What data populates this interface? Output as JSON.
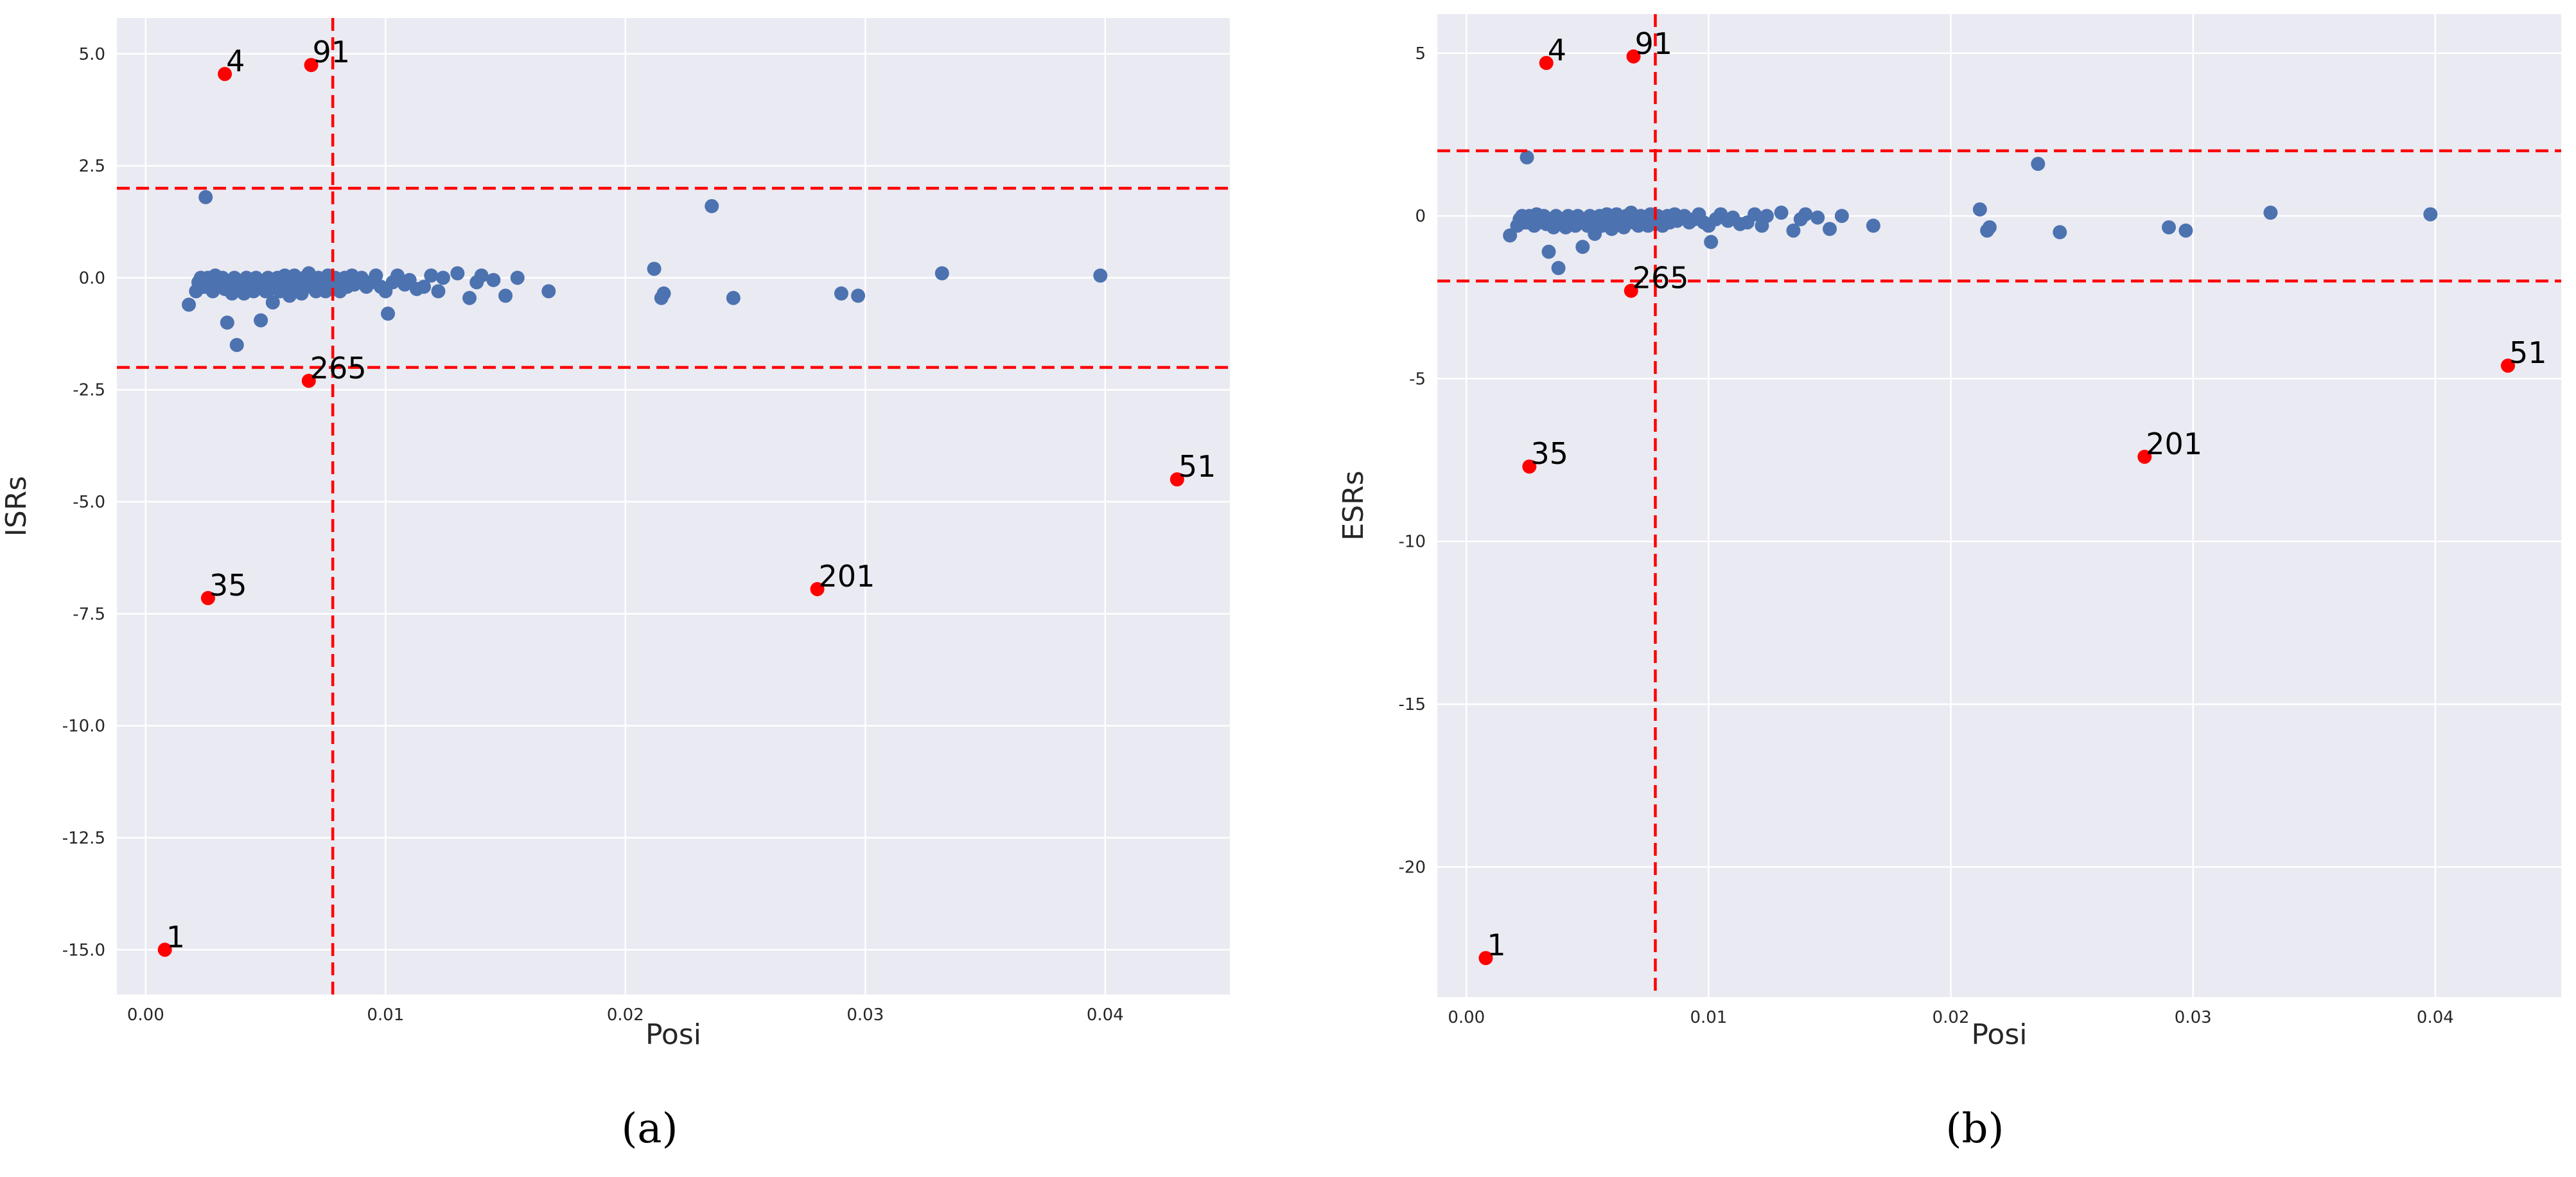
{
  "chart_data": [
    {
      "type": "scatter",
      "panel_label": "(a)",
      "xlabel": "Posi",
      "ylabel": "ISRs",
      "xlim": [
        -0.0012,
        0.0452
      ],
      "ylim": [
        -16.0,
        5.8
      ],
      "xticks": [
        0.0,
        0.01,
        0.02,
        0.03,
        0.04
      ],
      "xtick_labels": [
        "0.00",
        "0.01",
        "0.02",
        "0.03",
        "0.04"
      ],
      "yticks": [
        -15.0,
        -12.5,
        -10.0,
        -7.5,
        -5.0,
        -2.5,
        0.0,
        2.5,
        5.0
      ],
      "ytick_labels": [
        "-15.0",
        "-12.5",
        "-10.0",
        "-7.5",
        "-5.0",
        "-2.5",
        "0.0",
        "2.5",
        "5.0"
      ],
      "grid": true,
      "threshold_lines": {
        "vertical": 0.0078,
        "horizontal": [
          2.0,
          -2.0
        ]
      },
      "series": [
        {
          "role": "normal",
          "points": [
            [
              0.0018,
              -0.6
            ],
            [
              0.0021,
              -0.3
            ],
            [
              0.0022,
              -0.1
            ],
            [
              0.0023,
              0.0
            ],
            [
              0.0024,
              -0.2
            ],
            [
              0.0025,
              1.8
            ],
            [
              0.0025,
              -0.2
            ],
            [
              0.0026,
              0.0
            ],
            [
              0.0027,
              -0.1
            ],
            [
              0.0028,
              -0.3
            ],
            [
              0.0029,
              0.05
            ],
            [
              0.003,
              -0.2
            ],
            [
              0.0031,
              -0.1
            ],
            [
              0.0032,
              0.0
            ],
            [
              0.0033,
              -0.25
            ],
            [
              0.0034,
              -1.0
            ],
            [
              0.0035,
              -0.1
            ],
            [
              0.0036,
              -0.35
            ],
            [
              0.0037,
              0.0
            ],
            [
              0.0038,
              -1.5
            ],
            [
              0.0039,
              -0.2
            ],
            [
              0.004,
              -0.1
            ],
            [
              0.0041,
              -0.35
            ],
            [
              0.0042,
              0.0
            ],
            [
              0.0043,
              -0.2
            ],
            [
              0.0044,
              -0.1
            ],
            [
              0.0045,
              -0.3
            ],
            [
              0.0046,
              0.0
            ],
            [
              0.0047,
              -0.2
            ],
            [
              0.0048,
              -0.95
            ],
            [
              0.0049,
              -0.1
            ],
            [
              0.005,
              -0.3
            ],
            [
              0.0051,
              0.0
            ],
            [
              0.0052,
              -0.25
            ],
            [
              0.0053,
              -0.55
            ],
            [
              0.0054,
              -0.1
            ],
            [
              0.0055,
              0.0
            ],
            [
              0.0056,
              -0.3
            ],
            [
              0.0057,
              -0.15
            ],
            [
              0.0058,
              0.05
            ],
            [
              0.0059,
              -0.2
            ],
            [
              0.006,
              -0.4
            ],
            [
              0.0061,
              -0.1
            ],
            [
              0.0062,
              0.05
            ],
            [
              0.0063,
              -0.25
            ],
            [
              0.0064,
              -0.1
            ],
            [
              0.0065,
              -0.35
            ],
            [
              0.0066,
              0.0
            ],
            [
              0.0067,
              -0.15
            ],
            [
              0.0068,
              0.1
            ],
            [
              0.0069,
              -0.2
            ],
            [
              0.007,
              -0.05
            ],
            [
              0.0071,
              -0.3
            ],
            [
              0.0072,
              0.0
            ],
            [
              0.0073,
              -0.2
            ],
            [
              0.0074,
              -0.1
            ],
            [
              0.0075,
              -0.3
            ],
            [
              0.0076,
              0.05
            ],
            [
              0.0077,
              -0.1
            ],
            [
              0.0078,
              -0.25
            ],
            [
              0.0079,
              0.0
            ],
            [
              0.008,
              -0.15
            ],
            [
              0.0081,
              -0.3
            ],
            [
              0.0082,
              -0.05
            ],
            [
              0.0083,
              0.0
            ],
            [
              0.0084,
              -0.2
            ],
            [
              0.0085,
              -0.1
            ],
            [
              0.0086,
              0.05
            ],
            [
              0.0087,
              -0.15
            ],
            [
              0.0088,
              -0.05
            ],
            [
              0.009,
              0.0
            ],
            [
              0.0092,
              -0.2
            ],
            [
              0.0094,
              -0.1
            ],
            [
              0.0096,
              0.05
            ],
            [
              0.0098,
              -0.2
            ],
            [
              0.01,
              -0.3
            ],
            [
              0.0101,
              -0.8
            ],
            [
              0.0103,
              -0.1
            ],
            [
              0.0105,
              0.05
            ],
            [
              0.0108,
              -0.15
            ],
            [
              0.011,
              -0.05
            ],
            [
              0.0113,
              -0.25
            ],
            [
              0.0116,
              -0.2
            ],
            [
              0.0119,
              0.05
            ],
            [
              0.0122,
              -0.3
            ],
            [
              0.0124,
              0.0
            ],
            [
              0.013,
              0.1
            ],
            [
              0.0135,
              -0.45
            ],
            [
              0.0138,
              -0.1
            ],
            [
              0.014,
              0.05
            ],
            [
              0.0145,
              -0.05
            ],
            [
              0.015,
              -0.4
            ],
            [
              0.0155,
              0.0
            ],
            [
              0.0168,
              -0.3
            ],
            [
              0.0212,
              0.2
            ],
            [
              0.0215,
              -0.45
            ],
            [
              0.0216,
              -0.35
            ],
            [
              0.0236,
              1.6
            ],
            [
              0.0245,
              -0.45
            ],
            [
              0.029,
              -0.35
            ],
            [
              0.0297,
              -0.4
            ],
            [
              0.0332,
              0.1
            ],
            [
              0.0398,
              0.05
            ]
          ]
        },
        {
          "role": "outlier",
          "points": [
            {
              "x": 0.0033,
              "y": 4.55,
              "label": "4"
            },
            {
              "x": 0.0069,
              "y": 4.75,
              "label": "91"
            },
            {
              "x": 0.0068,
              "y": -2.3,
              "label": "265"
            },
            {
              "x": 0.0026,
              "y": -7.15,
              "label": "35"
            },
            {
              "x": 0.0008,
              "y": -15.0,
              "label": "1"
            },
            {
              "x": 0.028,
              "y": -6.95,
              "label": "201"
            },
            {
              "x": 0.043,
              "y": -4.5,
              "label": "51"
            }
          ]
        }
      ]
    },
    {
      "type": "scatter",
      "panel_label": "(b)",
      "xlabel": "Posi",
      "ylabel": "ESRs",
      "xlim": [
        -0.0012,
        0.0452
      ],
      "ylim": [
        -24.0,
        6.2
      ],
      "xticks": [
        0.0,
        0.01,
        0.02,
        0.03,
        0.04
      ],
      "xtick_labels": [
        "0.00",
        "0.01",
        "0.02",
        "0.03",
        "0.04"
      ],
      "yticks": [
        -20,
        -15,
        -10,
        -5,
        0,
        5
      ],
      "ytick_labels": [
        "-20",
        "-15",
        "-10",
        "-5",
        "0",
        "5"
      ],
      "grid": true,
      "threshold_lines": {
        "vertical": 0.0078,
        "horizontal": [
          2.0,
          -2.0
        ]
      },
      "series": [
        {
          "role": "normal",
          "points": [
            [
              0.0018,
              -0.6
            ],
            [
              0.0021,
              -0.3
            ],
            [
              0.0022,
              -0.1
            ],
            [
              0.0023,
              0.0
            ],
            [
              0.0024,
              -0.2
            ],
            [
              0.0025,
              1.8
            ],
            [
              0.0025,
              -0.2
            ],
            [
              0.0026,
              0.0
            ],
            [
              0.0027,
              -0.1
            ],
            [
              0.0028,
              -0.3
            ],
            [
              0.0029,
              0.05
            ],
            [
              0.003,
              -0.2
            ],
            [
              0.0031,
              -0.1
            ],
            [
              0.0032,
              0.0
            ],
            [
              0.0033,
              -0.25
            ],
            [
              0.0034,
              -1.1
            ],
            [
              0.0035,
              -0.1
            ],
            [
              0.0036,
              -0.35
            ],
            [
              0.0037,
              0.0
            ],
            [
              0.0038,
              -1.6
            ],
            [
              0.0039,
              -0.2
            ],
            [
              0.004,
              -0.1
            ],
            [
              0.0041,
              -0.35
            ],
            [
              0.0042,
              0.0
            ],
            [
              0.0043,
              -0.2
            ],
            [
              0.0044,
              -0.1
            ],
            [
              0.0045,
              -0.3
            ],
            [
              0.0046,
              0.0
            ],
            [
              0.0047,
              -0.2
            ],
            [
              0.0048,
              -0.95
            ],
            [
              0.0049,
              -0.1
            ],
            [
              0.005,
              -0.3
            ],
            [
              0.0051,
              0.0
            ],
            [
              0.0052,
              -0.25
            ],
            [
              0.0053,
              -0.55
            ],
            [
              0.0054,
              -0.1
            ],
            [
              0.0055,
              0.0
            ],
            [
              0.0056,
              -0.3
            ],
            [
              0.0057,
              -0.15
            ],
            [
              0.0058,
              0.05
            ],
            [
              0.0059,
              -0.2
            ],
            [
              0.006,
              -0.4
            ],
            [
              0.0061,
              -0.1
            ],
            [
              0.0062,
              0.05
            ],
            [
              0.0063,
              -0.25
            ],
            [
              0.0064,
              -0.1
            ],
            [
              0.0065,
              -0.35
            ],
            [
              0.0066,
              0.0
            ],
            [
              0.0067,
              -0.15
            ],
            [
              0.0068,
              0.1
            ],
            [
              0.0069,
              -0.2
            ],
            [
              0.007,
              -0.05
            ],
            [
              0.0071,
              -0.3
            ],
            [
              0.0072,
              0.0
            ],
            [
              0.0073,
              -0.2
            ],
            [
              0.0074,
              -0.1
            ],
            [
              0.0075,
              -0.3
            ],
            [
              0.0076,
              0.05
            ],
            [
              0.0077,
              -0.1
            ],
            [
              0.0078,
              -0.25
            ],
            [
              0.0079,
              0.0
            ],
            [
              0.008,
              -0.15
            ],
            [
              0.0081,
              -0.3
            ],
            [
              0.0082,
              -0.05
            ],
            [
              0.0083,
              0.0
            ],
            [
              0.0084,
              -0.2
            ],
            [
              0.0085,
              -0.1
            ],
            [
              0.0086,
              0.05
            ],
            [
              0.0087,
              -0.15
            ],
            [
              0.0088,
              -0.05
            ],
            [
              0.009,
              0.0
            ],
            [
              0.0092,
              -0.2
            ],
            [
              0.0094,
              -0.1
            ],
            [
              0.0096,
              0.05
            ],
            [
              0.0098,
              -0.2
            ],
            [
              0.01,
              -0.3
            ],
            [
              0.0101,
              -0.8
            ],
            [
              0.0103,
              -0.1
            ],
            [
              0.0105,
              0.05
            ],
            [
              0.0108,
              -0.15
            ],
            [
              0.011,
              -0.05
            ],
            [
              0.0113,
              -0.25
            ],
            [
              0.0116,
              -0.2
            ],
            [
              0.0119,
              0.05
            ],
            [
              0.0122,
              -0.3
            ],
            [
              0.0124,
              0.0
            ],
            [
              0.013,
              0.1
            ],
            [
              0.0135,
              -0.45
            ],
            [
              0.0138,
              -0.1
            ],
            [
              0.014,
              0.05
            ],
            [
              0.0145,
              -0.05
            ],
            [
              0.015,
              -0.4
            ],
            [
              0.0155,
              0.0
            ],
            [
              0.0168,
              -0.3
            ],
            [
              0.0212,
              0.2
            ],
            [
              0.0215,
              -0.45
            ],
            [
              0.0216,
              -0.35
            ],
            [
              0.0236,
              1.6
            ],
            [
              0.0245,
              -0.5
            ],
            [
              0.029,
              -0.35
            ],
            [
              0.0297,
              -0.45
            ],
            [
              0.0332,
              0.1
            ],
            [
              0.0398,
              0.05
            ]
          ]
        },
        {
          "role": "outlier",
          "points": [
            {
              "x": 0.0033,
              "y": 4.7,
              "label": "4"
            },
            {
              "x": 0.0069,
              "y": 4.9,
              "label": "91"
            },
            {
              "x": 0.0068,
              "y": -2.3,
              "label": "265"
            },
            {
              "x": 0.0026,
              "y": -7.7,
              "label": "35"
            },
            {
              "x": 0.0008,
              "y": -22.8,
              "label": "1"
            },
            {
              "x": 0.028,
              "y": -7.4,
              "label": "201"
            },
            {
              "x": 0.043,
              "y": -4.6,
              "label": "51"
            }
          ]
        }
      ]
    }
  ],
  "colors": {
    "plot_background": "#eaeaf2",
    "grid": "#ffffff",
    "normal_points": "#4c72b0",
    "outlier_points": "#ff0000",
    "threshold_lines": "#ff0000"
  }
}
